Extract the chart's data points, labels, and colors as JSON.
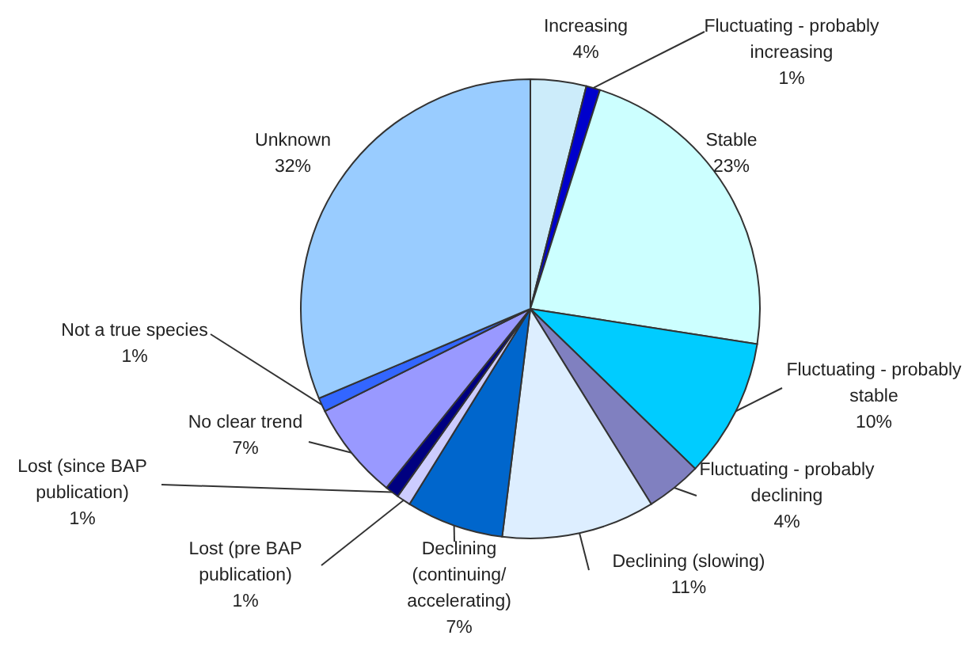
{
  "chart_data": {
    "type": "pie",
    "categories": [
      "Increasing",
      "Fluctuating - probably increasing",
      "Stable",
      "Fluctuating - probably stable",
      "Fluctuating - probably declining",
      "Declining (slowing)",
      "Declining (continuing/ accelerating)",
      "Lost (pre BAP publication)",
      "Lost (since BAP publication)",
      "No clear trend",
      "Not a true species",
      "Unknown"
    ],
    "values": [
      4,
      1,
      23,
      10,
      4,
      11,
      7,
      1,
      1,
      7,
      1,
      32
    ],
    "value_labels": [
      "4%",
      "1%",
      "23%",
      "10%",
      "4%",
      "11%",
      "7%",
      "1%",
      "1%",
      "7%",
      "1%",
      "32%"
    ],
    "colors": [
      "#ccecfa",
      "#0000cc",
      "#ccffff",
      "#00ccff",
      "#8080c0",
      "#ddeeff",
      "#0066cc",
      "#ccccff",
      "#000080",
      "#9999ff",
      "#3366ff",
      "#99ccff"
    ]
  }
}
